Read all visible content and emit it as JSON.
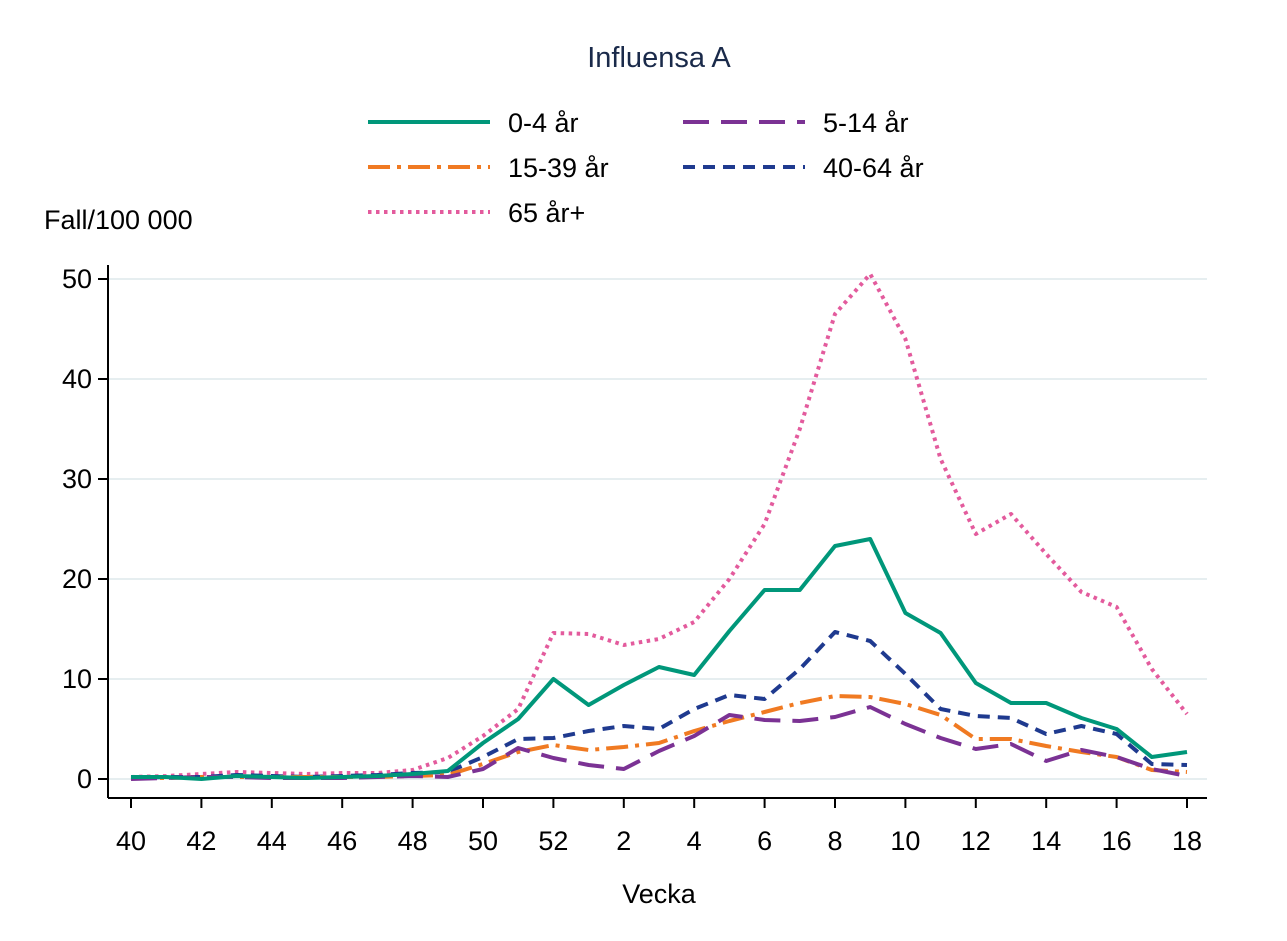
{
  "chart_data": {
    "type": "line",
    "title": "Influensa A",
    "xlabel": "Vecka",
    "ylabel": "Fall/100 000",
    "ylim": [
      0,
      52
    ],
    "yticks": [
      0,
      10,
      20,
      30,
      40,
      50
    ],
    "x": [
      40,
      41,
      42,
      43,
      44,
      45,
      46,
      47,
      48,
      49,
      50,
      51,
      52,
      1,
      2,
      3,
      4,
      5,
      6,
      7,
      8,
      9,
      10,
      11,
      12,
      13,
      14,
      15,
      16,
      17,
      18
    ],
    "xtick_labels": [
      "40",
      "42",
      "44",
      "46",
      "48",
      "50",
      "52",
      "2",
      "4",
      "6",
      "8",
      "10",
      "12",
      "14",
      "16",
      "18"
    ],
    "grid": "horizontal",
    "legend": "top",
    "series": [
      {
        "name": "0-4 år",
        "color": "#00977A",
        "dash": "solid",
        "values": [
          0.2,
          0.2,
          0,
          0.3,
          0.2,
          0.1,
          0.2,
          0.3,
          0.5,
          0.8,
          3.6,
          6,
          10,
          7.4,
          9.4,
          11.2,
          10.4,
          14.8,
          18.9,
          18.9,
          23.3,
          24,
          16.6,
          14.6,
          9.6,
          7.6,
          7.6,
          6.1,
          5,
          2.2,
          2.7
        ]
      },
      {
        "name": "5-14 år",
        "color": "#7B3294",
        "dash": "longdash",
        "values": [
          0,
          0.1,
          0.2,
          0.2,
          0.1,
          0.1,
          0.1,
          0.2,
          0.3,
          0.2,
          1,
          3.1,
          2.1,
          1.4,
          1,
          2.8,
          4.3,
          6.4,
          5.9,
          5.8,
          6.2,
          7.2,
          5.5,
          4.1,
          3,
          3.5,
          1.8,
          2.9,
          2.2,
          1,
          0.3
        ]
      },
      {
        "name": "15-39 år",
        "color": "#F07A22",
        "dash": "dashdot",
        "values": [
          0.1,
          0.1,
          0.2,
          0.2,
          0.2,
          0.2,
          0.2,
          0.2,
          0.3,
          0.4,
          1.5,
          2.7,
          3.4,
          2.9,
          3.2,
          3.6,
          4.8,
          5.8,
          6.7,
          7.6,
          8.3,
          8.2,
          7.5,
          6.4,
          4,
          4,
          3.3,
          2.7,
          2.2,
          0.9,
          0.7
        ]
      },
      {
        "name": "40-64 år",
        "color": "#1F3A8F",
        "dash": "shortdash",
        "values": [
          0.1,
          0.2,
          0.2,
          0.4,
          0.3,
          0.2,
          0.3,
          0.4,
          0.6,
          0.7,
          2.2,
          4,
          4.1,
          4.8,
          5.3,
          5,
          7,
          8.4,
          8,
          11,
          14.7,
          13.8,
          10.5,
          7,
          6.3,
          6.1,
          4.5,
          5.3,
          4.5,
          1.5,
          1.4
        ]
      },
      {
        "name": "65 år+",
        "color": "#E35B9D",
        "dash": "dot",
        "values": [
          0.2,
          0.3,
          0.5,
          0.7,
          0.6,
          0.5,
          0.6,
          0.6,
          0.9,
          2.1,
          4.3,
          7,
          14.6,
          14.5,
          13.4,
          14,
          15.7,
          20,
          25.5,
          35,
          46.5,
          50.5,
          44,
          32,
          24.5,
          26.5,
          22.5,
          18.7,
          17.2,
          11,
          6.5
        ]
      }
    ]
  }
}
